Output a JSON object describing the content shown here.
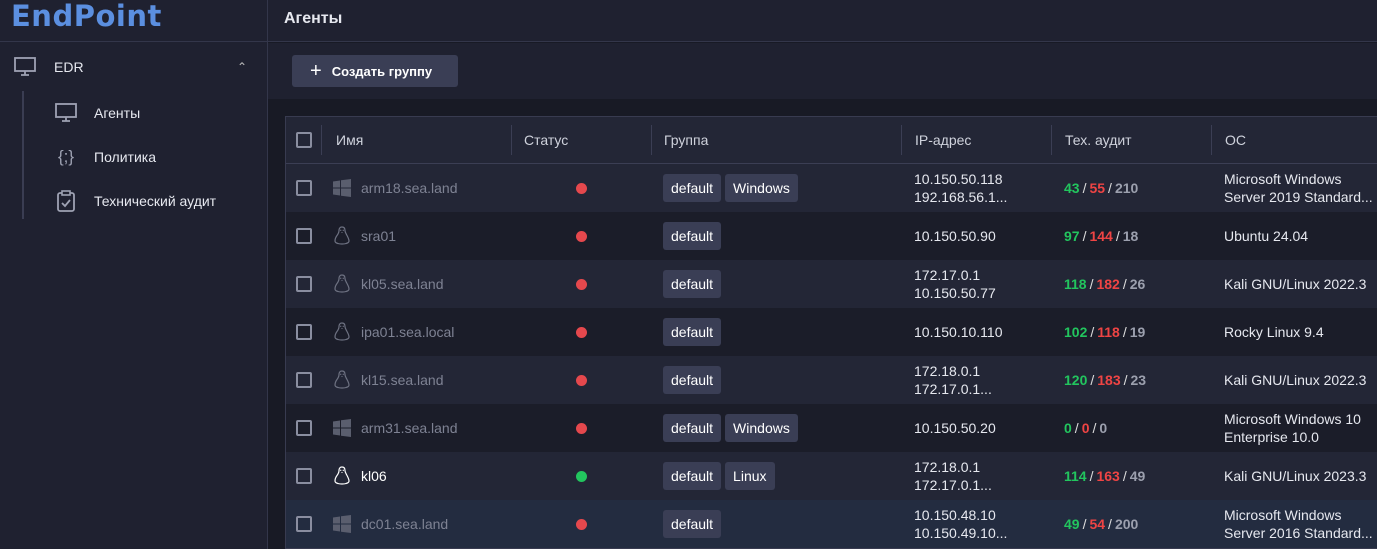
{
  "app": {
    "logo": "EndPoint",
    "page_title": "Агенты"
  },
  "sidebar": {
    "section": "EDR",
    "items": [
      {
        "label": "Агенты",
        "icon": "monitor-icon"
      },
      {
        "label": "Политика",
        "icon": "braces-icon"
      },
      {
        "label": "Технический аудит",
        "icon": "clipboard-check-icon"
      }
    ]
  },
  "toolbar": {
    "create_group": "Создать группу"
  },
  "colors": {
    "online": "#22c55e",
    "offline": "#e5484d",
    "accent": "#5b8fe0"
  },
  "table": {
    "headers": [
      "Имя",
      "Статус",
      "Группа",
      "IP-адрес",
      "Тех. аудит",
      "ОС"
    ],
    "rows": [
      {
        "name": "arm18.sea.land",
        "os_icon": "windows-icon",
        "status": "offline",
        "groups": [
          "default",
          "Windows"
        ],
        "ip": [
          "10.150.50.118",
          "192.168.56.1..."
        ],
        "audit": [
          "43",
          "55",
          "210"
        ],
        "os": [
          "Microsoft Windows",
          "Server 2019 Standard..."
        ]
      },
      {
        "name": "sra01",
        "os_icon": "linux-icon",
        "status": "offline",
        "groups": [
          "default"
        ],
        "ip": [
          "10.150.50.90"
        ],
        "audit": [
          "97",
          "144",
          "18"
        ],
        "os": [
          "Ubuntu 24.04"
        ]
      },
      {
        "name": "kl05.sea.land",
        "os_icon": "linux-icon",
        "status": "offline",
        "groups": [
          "default"
        ],
        "ip": [
          "172.17.0.1",
          "10.150.50.77"
        ],
        "audit": [
          "118",
          "182",
          "26"
        ],
        "os": [
          "Kali GNU/Linux 2022.3"
        ]
      },
      {
        "name": "ipa01.sea.local",
        "os_icon": "linux-icon",
        "status": "offline",
        "groups": [
          "default"
        ],
        "ip": [
          "10.150.10.110"
        ],
        "audit": [
          "102",
          "118",
          "19"
        ],
        "os": [
          "Rocky Linux 9.4"
        ]
      },
      {
        "name": "kl15.sea.land",
        "os_icon": "linux-icon",
        "status": "offline",
        "groups": [
          "default"
        ],
        "ip": [
          "172.18.0.1",
          "172.17.0.1..."
        ],
        "audit": [
          "120",
          "183",
          "23"
        ],
        "os": [
          "Kali GNU/Linux 2022.3"
        ]
      },
      {
        "name": "arm31.sea.land",
        "os_icon": "windows-icon",
        "status": "offline",
        "groups": [
          "default",
          "Windows"
        ],
        "ip": [
          "10.150.50.20"
        ],
        "audit": [
          "0",
          "0",
          "0"
        ],
        "os": [
          "Microsoft Windows 10",
          "Enterprise 10.0"
        ]
      },
      {
        "name": "kl06",
        "os_icon": "linux-icon",
        "status": "online",
        "groups": [
          "default",
          "Linux"
        ],
        "ip": [
          "172.18.0.1",
          "172.17.0.1..."
        ],
        "audit": [
          "114",
          "163",
          "49"
        ],
        "os": [
          "Kali GNU/Linux 2023.3"
        ]
      },
      {
        "name": "dc01.sea.land",
        "os_icon": "windows-icon",
        "status": "offline",
        "groups": [
          "default"
        ],
        "ip": [
          "10.150.48.10",
          "10.150.49.10..."
        ],
        "audit": [
          "49",
          "54",
          "200"
        ],
        "os": [
          "Microsoft Windows",
          "Server 2016 Standard..."
        ]
      }
    ]
  }
}
